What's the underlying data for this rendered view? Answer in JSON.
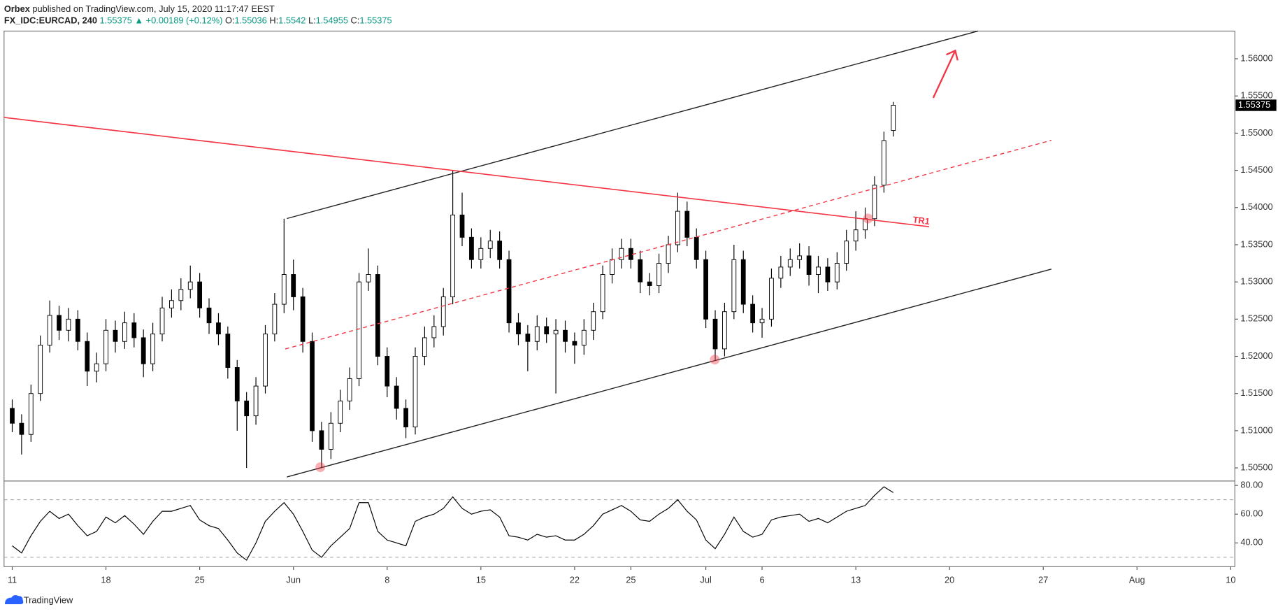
{
  "header": {
    "publisher": "Orbex",
    "published": "published on TradingView.com, July 15, 2020 11:17:47 EEST",
    "symbol": "FX_IDC:EURCAD, 240",
    "change": "▲ +0.00189 (+0.12%)",
    "ohlc_labels": [
      "O:",
      "H:",
      "L:",
      "C:"
    ]
  },
  "annotations": {
    "trendline_label": "TR1"
  },
  "footer": {
    "brand": "TradingView"
  },
  "chart_data": [
    {
      "type": "candlestick",
      "color": "#000000",
      "up_color": "#ffffff",
      "x": [
        0,
        0.5,
        1,
        1.5,
        2,
        2.5,
        3,
        3.5,
        4,
        4.5,
        5,
        5.5,
        6,
        6.5,
        7,
        7.5,
        8,
        8.5,
        9,
        9.5,
        10,
        10.5,
        11,
        11.5,
        12,
        12.5,
        13,
        13.5,
        14,
        14.5,
        15,
        15.5,
        16,
        16.5,
        17,
        17.5,
        18,
        18.5,
        19,
        19.5,
        20,
        20.5,
        21,
        21.5,
        22,
        22.5,
        23,
        23.5,
        24,
        24.5,
        25,
        25.5,
        26,
        26.5,
        27,
        27.5,
        28,
        28.5,
        29,
        29.5,
        30,
        30.5,
        31,
        31.5,
        32,
        32.5,
        33,
        33.5,
        34,
        34.5,
        35,
        35.5,
        36,
        36.5,
        37,
        37.5,
        38,
        38.5,
        39,
        39.5,
        40,
        40.5,
        41,
        41.5,
        42,
        42.5,
        43,
        43.5,
        44,
        44.5,
        45,
        45.5,
        46,
        46.5,
        47
      ],
      "open": [
        1.513,
        1.511,
        1.5095,
        1.515,
        1.5215,
        1.5255,
        1.5235,
        1.525,
        1.522,
        1.518,
        1.519,
        1.5235,
        1.522,
        1.5245,
        1.5225,
        1.519,
        1.523,
        1.5265,
        1.5275,
        1.529,
        1.53,
        1.5265,
        1.5245,
        1.523,
        1.5185,
        1.514,
        1.512,
        1.516,
        1.523,
        1.527,
        1.531,
        1.528,
        1.522,
        1.51,
        1.5075,
        1.511,
        1.514,
        1.517,
        1.53,
        1.531,
        1.52,
        1.516,
        1.513,
        1.5105,
        1.52,
        1.5225,
        1.524,
        1.528,
        1.539,
        1.536,
        1.533,
        1.5345,
        1.5355,
        1.533,
        1.5245,
        1.523,
        1.522,
        1.524,
        1.523,
        1.5235,
        1.522,
        1.5215,
        1.5235,
        1.526,
        1.531,
        1.533,
        1.5345,
        1.533,
        1.53,
        1.5295,
        1.5325,
        1.535,
        1.5395,
        1.536,
        1.533,
        1.525,
        1.521,
        1.526,
        1.533,
        1.527,
        1.5245,
        1.525,
        1.5305,
        1.532,
        1.533,
        1.5335,
        1.531,
        1.532,
        1.53,
        1.5325,
        1.5355,
        1.537,
        1.5385,
        1.543,
        1.55036
      ],
      "high": [
        1.5142,
        1.5122,
        1.5162,
        1.5228,
        1.5275,
        1.5268,
        1.5265,
        1.5262,
        1.5232,
        1.5205,
        1.525,
        1.5248,
        1.526,
        1.5258,
        1.5236,
        1.5245,
        1.528,
        1.529,
        1.5305,
        1.5322,
        1.5312,
        1.5278,
        1.5258,
        1.524,
        1.5195,
        1.5152,
        1.5172,
        1.5242,
        1.5285,
        1.5385,
        1.533,
        1.5292,
        1.5232,
        1.5112,
        1.5125,
        1.5155,
        1.5185,
        1.5312,
        1.5345,
        1.5322,
        1.5212,
        1.5172,
        1.5142,
        1.5212,
        1.524,
        1.5255,
        1.5292,
        1.545,
        1.542,
        1.5372,
        1.536,
        1.537,
        1.5368,
        1.5342,
        1.5258,
        1.5242,
        1.5255,
        1.5252,
        1.525,
        1.5248,
        1.5232,
        1.525,
        1.5272,
        1.5322,
        1.5345,
        1.5358,
        1.5358,
        1.5342,
        1.5312,
        1.5338,
        1.5362,
        1.542,
        1.5408,
        1.5372,
        1.5342,
        1.5262,
        1.5272,
        1.535,
        1.5342,
        1.5282,
        1.5265,
        1.5318,
        1.5335,
        1.5345,
        1.5352,
        1.5348,
        1.5335,
        1.5332,
        1.534,
        1.537,
        1.5395,
        1.54,
        1.5442,
        1.5502,
        1.5542
      ],
      "low": [
        1.5098,
        1.5068,
        1.5085,
        1.514,
        1.5205,
        1.5222,
        1.522,
        1.5208,
        1.516,
        1.5165,
        1.518,
        1.5205,
        1.521,
        1.5212,
        1.5172,
        1.518,
        1.522,
        1.5252,
        1.5262,
        1.5278,
        1.5252,
        1.523,
        1.5215,
        1.517,
        1.51,
        1.505,
        1.5108,
        1.515,
        1.522,
        1.5258,
        1.5262,
        1.5205,
        1.5085,
        1.505,
        1.5062,
        1.5098,
        1.5128,
        1.516,
        1.5288,
        1.5188,
        1.5145,
        1.5115,
        1.509,
        1.5095,
        1.5188,
        1.5212,
        1.5228,
        1.527,
        1.5348,
        1.5318,
        1.5318,
        1.5332,
        1.5318,
        1.5232,
        1.5215,
        1.518,
        1.5208,
        1.5218,
        1.515,
        1.5205,
        1.519,
        1.5202,
        1.5222,
        1.525,
        1.5298,
        1.5318,
        1.5318,
        1.5285,
        1.5282,
        1.5285,
        1.5312,
        1.534,
        1.5348,
        1.5318,
        1.5238,
        1.5195,
        1.52,
        1.525,
        1.5258,
        1.5232,
        1.5225,
        1.524,
        1.5292,
        1.5308,
        1.5318,
        1.5295,
        1.5285,
        1.5288,
        1.529,
        1.5315,
        1.5342,
        1.5358,
        1.5375,
        1.542,
        1.54955
      ],
      "close": [
        1.511,
        1.5095,
        1.515,
        1.5215,
        1.5255,
        1.5235,
        1.525,
        1.522,
        1.518,
        1.519,
        1.5235,
        1.522,
        1.5245,
        1.5225,
        1.519,
        1.523,
        1.5265,
        1.5275,
        1.529,
        1.53,
        1.5265,
        1.5245,
        1.523,
        1.5185,
        1.514,
        1.512,
        1.516,
        1.523,
        1.527,
        1.531,
        1.528,
        1.522,
        1.51,
        1.5075,
        1.511,
        1.514,
        1.517,
        1.53,
        1.531,
        1.52,
        1.516,
        1.513,
        1.5105,
        1.52,
        1.5225,
        1.524,
        1.528,
        1.539,
        1.536,
        1.533,
        1.5345,
        1.5355,
        1.533,
        1.5245,
        1.523,
        1.522,
        1.524,
        1.523,
        1.5235,
        1.522,
        1.5215,
        1.5235,
        1.526,
        1.531,
        1.533,
        1.5345,
        1.533,
        1.53,
        1.5295,
        1.5325,
        1.535,
        1.5395,
        1.536,
        1.533,
        1.525,
        1.521,
        1.526,
        1.533,
        1.527,
        1.5245,
        1.525,
        1.5305,
        1.532,
        1.533,
        1.5335,
        1.531,
        1.532,
        1.53,
        1.5325,
        1.5355,
        1.537,
        1.5385,
        1.543,
        1.549,
        1.55375
      ],
      "xlim": [
        -0.435,
        65.217
      ],
      "xticks": [
        {
          "value": 0,
          "label": "11"
        },
        {
          "value": 5,
          "label": "18"
        },
        {
          "value": 10,
          "label": "25"
        },
        {
          "value": 15,
          "label": "Jun"
        },
        {
          "value": 20,
          "label": "8"
        },
        {
          "value": 25,
          "label": "15"
        },
        {
          "value": 30,
          "label": "22"
        },
        {
          "value": 33,
          "label": "25"
        },
        {
          "value": 37,
          "label": "Jul"
        },
        {
          "value": 40,
          "label": "6"
        },
        {
          "value": 45,
          "label": "13"
        },
        {
          "value": 50,
          "label": "20"
        },
        {
          "value": 55,
          "label": "27"
        },
        {
          "value": 60,
          "label": "Aug"
        },
        {
          "value": 65,
          "label": "10"
        }
      ],
      "ylim": [
        1.50323,
        1.56373
      ],
      "yticks": [
        {
          "value": 1.505,
          "label": "1.50500"
        },
        {
          "value": 1.51,
          "label": "1.51000"
        },
        {
          "value": 1.515,
          "label": "1.51500"
        },
        {
          "value": 1.52,
          "label": "1.52000"
        },
        {
          "value": 1.525,
          "label": "1.52500"
        },
        {
          "value": 1.53,
          "label": "1.53000"
        },
        {
          "value": 1.535,
          "label": "1.53500"
        },
        {
          "value": 1.54,
          "label": "1.54000"
        },
        {
          "value": 1.545,
          "label": "1.54500"
        },
        {
          "value": 1.55,
          "label": "1.55000"
        },
        {
          "value": 1.555,
          "label": "1.55500"
        },
        {
          "value": 1.56,
          "label": "1.56000"
        }
      ]
    },
    {
      "type": "line",
      "color": "#000000",
      "x": [
        0,
        0.5,
        1,
        1.5,
        2,
        2.5,
        3,
        3.5,
        4,
        4.5,
        5,
        5.5,
        6,
        6.5,
        7,
        7.5,
        8,
        8.5,
        9,
        9.5,
        10,
        10.5,
        11,
        11.5,
        12,
        12.5,
        13,
        13.5,
        14,
        14.5,
        15,
        15.5,
        16,
        16.5,
        17,
        17.5,
        18,
        18.5,
        19,
        19.5,
        20,
        20.5,
        21,
        21.5,
        22,
        22.5,
        23,
        23.5,
        24,
        24.5,
        25,
        25.5,
        26,
        26.5,
        27,
        27.5,
        28,
        28.5,
        29,
        29.5,
        30,
        30.5,
        31,
        31.5,
        32,
        32.5,
        33,
        33.5,
        34,
        34.5,
        35,
        35.5,
        36,
        36.5,
        37,
        37.5,
        38,
        38.5,
        39,
        39.5,
        40,
        40.5,
        41,
        41.5,
        42,
        42.5,
        43,
        43.5,
        44,
        44.5,
        45,
        45.5,
        46,
        46.5,
        47
      ],
      "values": [
        38,
        33,
        45,
        55,
        62,
        57,
        60,
        52,
        45,
        48,
        58,
        54,
        59,
        53,
        46,
        55,
        62,
        62,
        64,
        66,
        56,
        52,
        50,
        42,
        33,
        28,
        40,
        55,
        62,
        68,
        60,
        48,
        35,
        30,
        38,
        44,
        50,
        68,
        68,
        48,
        42,
        40,
        38,
        55,
        58,
        60,
        64,
        72,
        64,
        60,
        62,
        63,
        58,
        45,
        44,
        42,
        46,
        44,
        45,
        42,
        42,
        46,
        52,
        60,
        63,
        66,
        62,
        56,
        55,
        60,
        64,
        70,
        62,
        56,
        42,
        36,
        46,
        58,
        48,
        44,
        46,
        56,
        58,
        59,
        60,
        55,
        57,
        54,
        58,
        62,
        64,
        66,
        73,
        79,
        75
      ],
      "xlim": [
        -0.435,
        65.217
      ],
      "ylim": [
        23.5,
        83
      ],
      "yticks": [
        {
          "value": 40,
          "label": "40.00"
        },
        {
          "value": 60,
          "label": "60.00"
        },
        {
          "value": 80,
          "label": "80.00"
        }
      ],
      "levels": [
        70,
        30
      ]
    }
  ]
}
